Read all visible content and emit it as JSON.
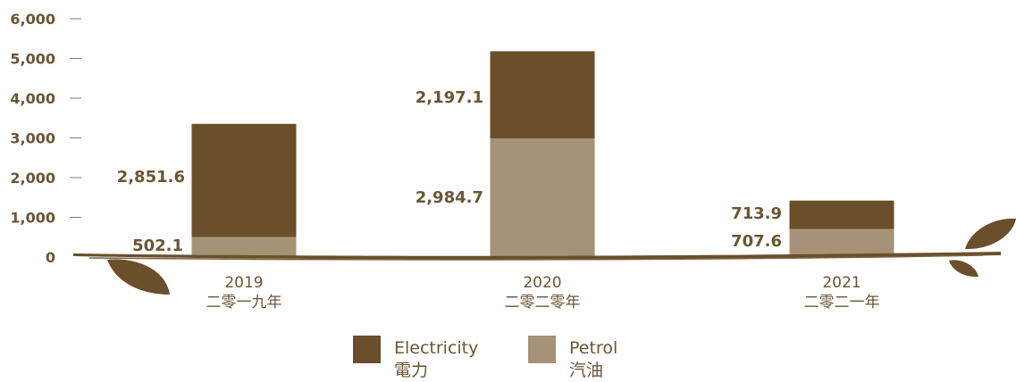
{
  "chart_data": {
    "type": "bar",
    "stacked": true,
    "categories": [
      {
        "year": "2019",
        "label_zh": "二零一九年"
      },
      {
        "year": "2020",
        "label_zh": "二零二零年"
      },
      {
        "year": "2021",
        "label_zh": "二零二一年"
      }
    ],
    "series": [
      {
        "name_en": "Petrol",
        "name_zh": "汽油",
        "color": "#a69276",
        "values": [
          502.1,
          2984.7,
          707.6
        ],
        "labels": [
          "502.1",
          "2,984.7",
          "707.6"
        ]
      },
      {
        "name_en": "Electricity",
        "name_zh": "電力",
        "color": "#6b4f2a",
        "values": [
          2851.6,
          2197.1,
          713.9
        ],
        "labels": [
          "2,851.6",
          "2,197.1",
          "713.9"
        ]
      }
    ],
    "ylim": [
      0,
      6000
    ],
    "yticks": [
      0,
      1000,
      2000,
      3000,
      4000,
      5000,
      6000
    ],
    "ytick_labels": [
      "0",
      "1,000",
      "2,000",
      "3,000",
      "4,000",
      "5,000",
      "6,000"
    ],
    "legend_order": [
      1,
      0
    ],
    "legend_position": "bottom-center",
    "grid": false
  }
}
